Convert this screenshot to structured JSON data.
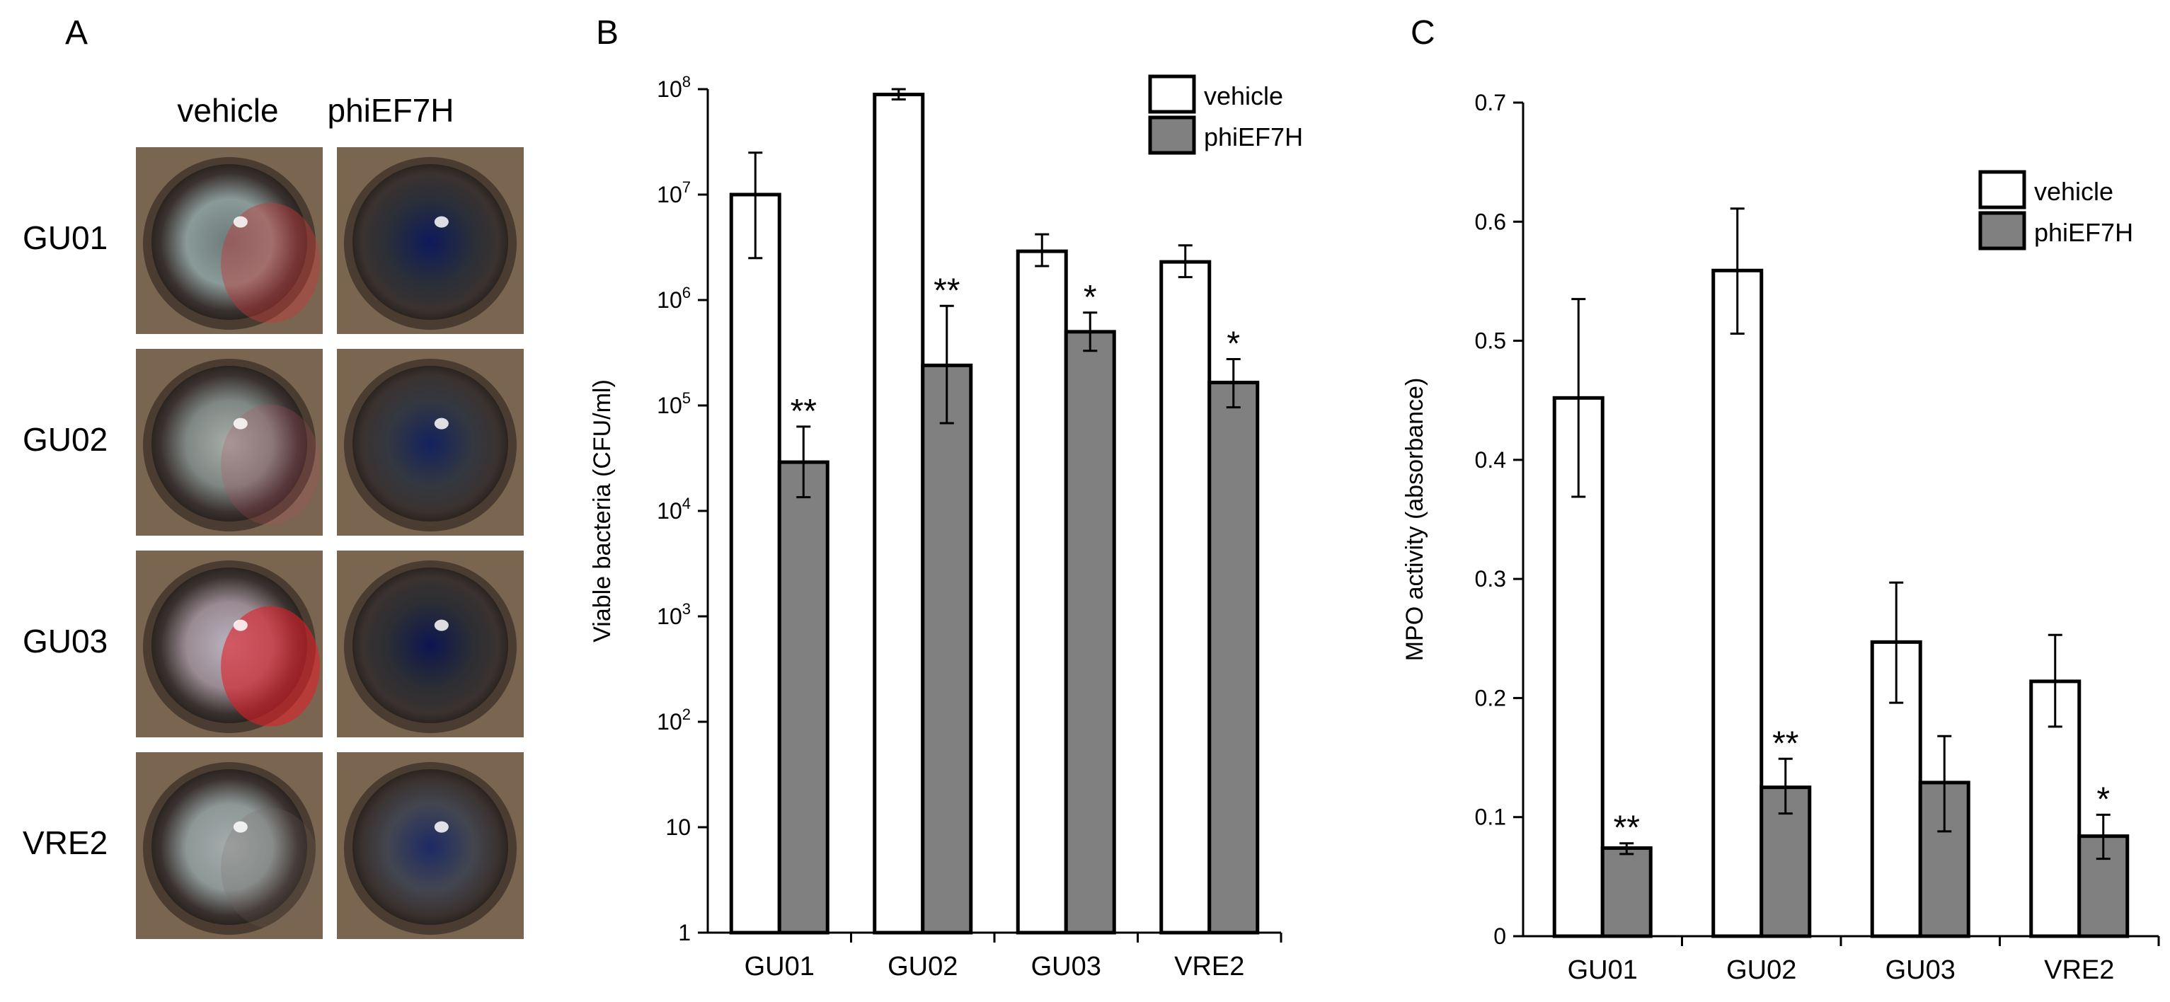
{
  "colors": {
    "vehicle_fill": "#ffffff",
    "treated_fill": "#808080",
    "stroke": "#000000"
  },
  "panel_a": {
    "letter": "A",
    "columns": [
      "vehicle",
      "phiEF7H"
    ],
    "rows": [
      "GU01",
      "GU02",
      "GU03",
      "VRE2"
    ],
    "photos": [
      {
        "row": "GU01",
        "column": "vehicle",
        "iris": "#8a9a98",
        "pupil": "#6d7b7a",
        "tint": "#c23a3a",
        "tint_opacity": 0.45
      },
      {
        "row": "GU01",
        "column": "phiEF7H",
        "iris": "#2a2f38",
        "pupil": "#0e1a5c",
        "tint": "#000000",
        "tint_opacity": 0
      },
      {
        "row": "GU02",
        "column": "vehicle",
        "iris": "#7f8784",
        "pupil": "#a7aea9",
        "tint": "#b34a5a",
        "tint_opacity": 0.25
      },
      {
        "row": "GU02",
        "column": "phiEF7H",
        "iris": "#343840",
        "pupil": "#13225e",
        "tint": "#000000",
        "tint_opacity": 0
      },
      {
        "row": "GU03",
        "column": "vehicle",
        "iris": "#9a8a92",
        "pupil": "#b8b3be",
        "tint": "#e0202a",
        "tint_opacity": 0.6
      },
      {
        "row": "GU03",
        "column": "phiEF7H",
        "iris": "#2c2e33",
        "pupil": "#0c1650",
        "tint": "#000000",
        "tint_opacity": 0
      },
      {
        "row": "VRE2",
        "column": "vehicle",
        "iris": "#8d9796",
        "pupil": "#a4acac",
        "tint": "#7a6660",
        "tint_opacity": 0.2
      },
      {
        "row": "VRE2",
        "column": "phiEF7H",
        "iris": "#434650",
        "pupil": "#1d2a66",
        "tint": "#000000",
        "tint_opacity": 0
      }
    ]
  },
  "chart_data": [
    {
      "panel": "B",
      "type": "bar",
      "scale": "log10",
      "categories": [
        "GU01",
        "GU02",
        "GU03",
        "VRE2"
      ],
      "ylabel": "Viable bacteria (CFU/ml)",
      "ylim": [
        1,
        100000000
      ],
      "ytick_labels": [
        {
          "value": 1,
          "label": "1",
          "sup": ""
        },
        {
          "value": 10,
          "label": "10",
          "sup": ""
        },
        {
          "value": 100,
          "label": "10",
          "sup": "2"
        },
        {
          "value": 1000,
          "label": "10",
          "sup": "3"
        },
        {
          "value": 10000,
          "label": "10",
          "sup": "4"
        },
        {
          "value": 100000,
          "label": "10",
          "sup": "5"
        },
        {
          "value": 1000000,
          "label": "10",
          "sup": "6"
        },
        {
          "value": 10000000,
          "label": "10",
          "sup": "7"
        },
        {
          "value": 100000000,
          "label": "10",
          "sup": "8"
        }
      ],
      "legend": {
        "position": "top-right"
      },
      "series": [
        {
          "name": "vehicle",
          "values": [
            10000000,
            89000000,
            2900000,
            2300000
          ],
          "err_low": [
            2500000,
            80000000,
            2100000,
            1650000
          ],
          "err_high": [
            25000000,
            100000000,
            4200000,
            3300000
          ],
          "sig": [
            "",
            "",
            "",
            ""
          ]
        },
        {
          "name": "phiEF7H",
          "values": [
            29000,
            240000,
            500000,
            165000
          ],
          "err_low": [
            13500,
            68000,
            330000,
            96000
          ],
          "err_high": [
            63000,
            880000,
            760000,
            275000
          ],
          "sig": [
            "**",
            "**",
            "*",
            "*"
          ]
        }
      ]
    },
    {
      "panel": "C",
      "type": "bar",
      "scale": "linear",
      "categories": [
        "GU01",
        "GU02",
        "GU03",
        "VRE2"
      ],
      "ylabel": "MPO activity (absorbance)",
      "ylim": [
        0,
        0.7
      ],
      "ytick_labels": [
        {
          "value": 0,
          "label": "0",
          "sup": ""
        },
        {
          "value": 0.1,
          "label": "0.1",
          "sup": ""
        },
        {
          "value": 0.2,
          "label": "0.2",
          "sup": ""
        },
        {
          "value": 0.3,
          "label": "0.3",
          "sup": ""
        },
        {
          "value": 0.4,
          "label": "0.4",
          "sup": ""
        },
        {
          "value": 0.5,
          "label": "0.5",
          "sup": ""
        },
        {
          "value": 0.6,
          "label": "0.6",
          "sup": ""
        },
        {
          "value": 0.7,
          "label": "0.7",
          "sup": ""
        }
      ],
      "legend": {
        "position": "top-right"
      },
      "series": [
        {
          "name": "vehicle",
          "values": [
            0.452,
            0.559,
            0.247,
            0.214
          ],
          "err_low": [
            0.369,
            0.506,
            0.196,
            0.176
          ],
          "err_high": [
            0.535,
            0.611,
            0.297,
            0.253
          ],
          "sig": [
            "",
            "",
            "",
            ""
          ]
        },
        {
          "name": "phiEF7H",
          "values": [
            0.074,
            0.125,
            0.129,
            0.084
          ],
          "err_low": [
            0.069,
            0.103,
            0.088,
            0.065
          ],
          "err_high": [
            0.078,
            0.149,
            0.168,
            0.102
          ],
          "sig": [
            "**",
            "**",
            "",
            "*"
          ]
        }
      ]
    }
  ],
  "panel_letters": {
    "B": "B",
    "C": "C"
  }
}
